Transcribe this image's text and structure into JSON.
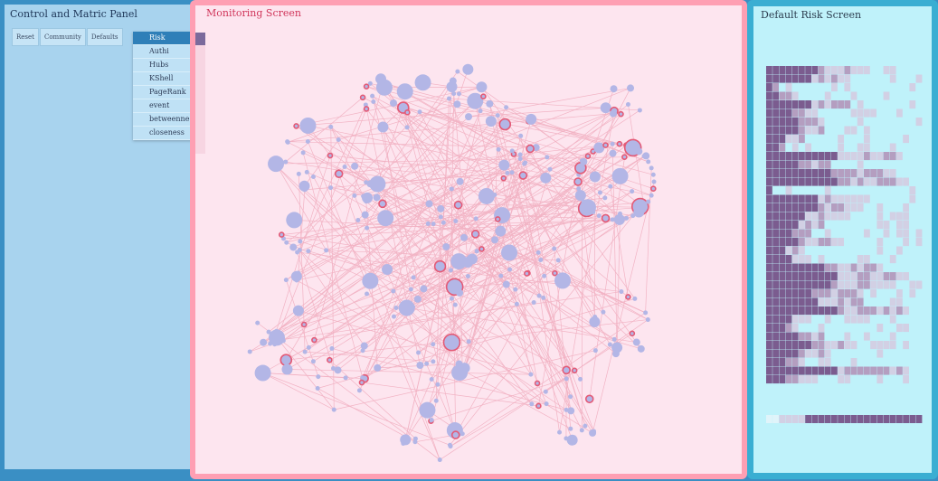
{
  "control": {
    "title": "Control and Matric Panel",
    "tabs": [
      "Reset",
      "Community",
      "Defaults"
    ],
    "metrics": [
      "Risk",
      "Authi",
      "Hubs",
      "KShell",
      "PageRank",
      "event",
      "betweenne",
      "closeness"
    ],
    "selected_metric": "Risk"
  },
  "monitor": {
    "title": "Monitoring Screen"
  },
  "risk": {
    "title": "Default Risk Screen"
  },
  "colors": {
    "control_bg": "#a8d3ee",
    "monitor_bg": "#fde5ef",
    "risk_bg": "#bff2fa",
    "node": "#b3b6e6",
    "node_risk_stroke": "#e45a76",
    "cell_dark": "#7b5c8f",
    "cell_mid": "#b49ec0",
    "cell_light": "#d2d0e4"
  }
}
